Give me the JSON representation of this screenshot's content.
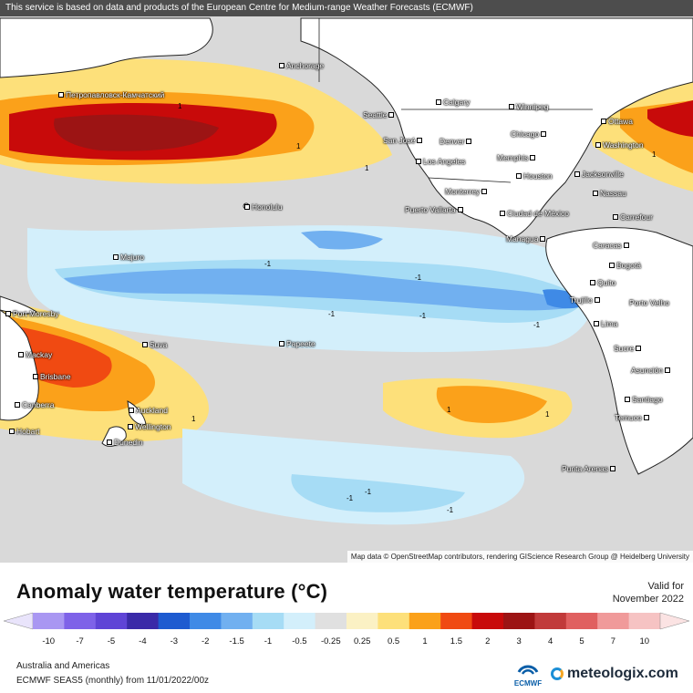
{
  "header": {
    "notice": "This service is based on data and products of the European Centre for Medium-range Weather Forecasts (ECMWF)"
  },
  "map": {
    "attribution": "Map data © OpenStreetMap contributors, rendering GIScience Research Group @ Heidelberg University",
    "cities": [
      {
        "id": "anchorage",
        "name": "Anchorage"
      },
      {
        "id": "petropavlovsk",
        "name": "Петропавловск-Камчатский"
      },
      {
        "id": "calgary",
        "name": "Calgary"
      },
      {
        "id": "winnipeg",
        "name": "Winnipeg"
      },
      {
        "id": "seattle",
        "name": "Seattle"
      },
      {
        "id": "ottawa",
        "name": "Ottawa"
      },
      {
        "id": "chicago",
        "name": "Chicago"
      },
      {
        "id": "san-jose",
        "name": "San José"
      },
      {
        "id": "denver",
        "name": "Denver"
      },
      {
        "id": "washington",
        "name": "Washington"
      },
      {
        "id": "memphis",
        "name": "Memphis"
      },
      {
        "id": "los-angeles",
        "name": "Los Angeles"
      },
      {
        "id": "houston",
        "name": "Houston"
      },
      {
        "id": "jacksonville",
        "name": "Jacksonville"
      },
      {
        "id": "monterrey",
        "name": "Monterrey"
      },
      {
        "id": "nassau",
        "name": "Nassau"
      },
      {
        "id": "honolulu",
        "name": "Honolulu"
      },
      {
        "id": "puerto-vallarta",
        "name": "Puerto Vallarta"
      },
      {
        "id": "ciudad-de-mexico",
        "name": "Ciudad de México"
      },
      {
        "id": "carrefour",
        "name": "Carrefour"
      },
      {
        "id": "managua",
        "name": "Managua"
      },
      {
        "id": "caracas",
        "name": "Caracas"
      },
      {
        "id": "majuro",
        "name": "Majuro"
      },
      {
        "id": "bogota",
        "name": "Bogotá"
      },
      {
        "id": "quito",
        "name": "Quito"
      },
      {
        "id": "trujillo",
        "name": "Trujillo"
      },
      {
        "id": "porto-velho",
        "name": "Porto Velho"
      },
      {
        "id": "port-moresby",
        "name": "Port Moresby"
      },
      {
        "id": "lima",
        "name": "Lima"
      },
      {
        "id": "suva",
        "name": "Suva"
      },
      {
        "id": "papeete",
        "name": "Papeete"
      },
      {
        "id": "mackay",
        "name": "Mackay"
      },
      {
        "id": "sucre",
        "name": "Sucre"
      },
      {
        "id": "brisbane",
        "name": "Brisbane"
      },
      {
        "id": "asuncion",
        "name": "Asunción"
      },
      {
        "id": "canberra",
        "name": "Canberra"
      },
      {
        "id": "auckland",
        "name": "Auckland"
      },
      {
        "id": "santiago",
        "name": "Santiago"
      },
      {
        "id": "wellington",
        "name": "Wellington"
      },
      {
        "id": "hobart",
        "name": "Hobart"
      },
      {
        "id": "temuco",
        "name": "Temuco"
      },
      {
        "id": "dunedin",
        "name": "Dunedin"
      },
      {
        "id": "punta-arenas",
        "name": "Punta Arenas"
      }
    ],
    "contour_label_pos": "1",
    "contour_label_neg": "-1"
  },
  "legend": {
    "title": "Anomaly water temperature (°C)",
    "valid_label": "Valid for",
    "valid_date": "November 2022",
    "bins": [
      "#a997f2",
      "#7e62e8",
      "#5f44d6",
      "#3a2aa8",
      "#1e5bd0",
      "#3f8ae6",
      "#71b0f0",
      "#a6dcf5",
      "#d3effb",
      "#e0e0e0",
      "#fbf1c4",
      "#fde07a",
      "#fba11a",
      "#f04a12",
      "#c80a0a",
      "#9c1414",
      "#c13a3a",
      "#e06060",
      "#f09a9a",
      "#f6c3c3"
    ],
    "ticks": [
      "-10",
      "-7",
      "-5",
      "-4",
      "-3",
      "-2",
      "-1.5",
      "-1",
      "-0.5",
      "-0.25",
      "0.25",
      "0.5",
      "1",
      "1.5",
      "2",
      "3",
      "4",
      "5",
      "7",
      "10"
    ]
  },
  "footer": {
    "region": "Australia and Americas",
    "run": "ECMWF SEAS5 (monthly) from 11/01/2022/00z",
    "ecmwf_logo_text": "ECMWF",
    "brand": "meteologix.com"
  }
}
